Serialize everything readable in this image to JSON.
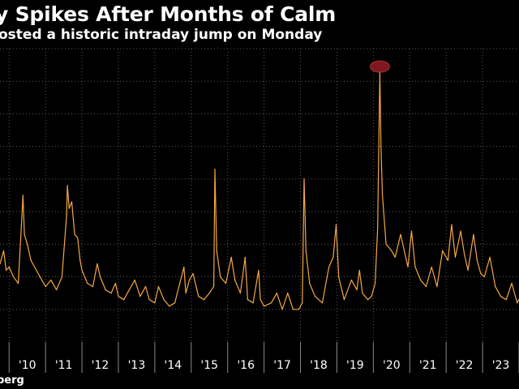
{
  "header": {
    "title": "y Spikes After Months of Calm",
    "subtitle": "osted a historic intraday jump on Monday"
  },
  "footer": {
    "source": "berg"
  },
  "colors": {
    "background": "#000000",
    "line": "#f5a742",
    "grid": "#5a5a5a",
    "highlight": "#8b1a26"
  },
  "chart_data": {
    "type": "line",
    "title": "y Spikes After Months of Calm",
    "subtitle": "osted a historic intraday jump on Monday",
    "x_tick_labels": [
      "'10",
      "'11",
      "'12",
      "'13",
      "'14",
      "'15",
      "'16",
      "'17",
      "'18",
      "'19",
      "'20",
      "'21",
      "'22",
      "'23"
    ],
    "x_range": [
      2009.75,
      2024.0
    ],
    "y_range": [
      0,
      90
    ],
    "grid": "on (vertical dotted at year boundaries, horizontal dotted)",
    "annotation": "red ellipse marking the 2020 peak",
    "series": [
      {
        "values": [
          [
            2009.75,
            24
          ],
          [
            2009.85,
            28
          ],
          [
            2009.92,
            22
          ],
          [
            2010.0,
            23
          ],
          [
            2010.12,
            20
          ],
          [
            2010.25,
            18
          ],
          [
            2010.35,
            38
          ],
          [
            2010.38,
            45
          ],
          [
            2010.42,
            33
          ],
          [
            2010.5,
            30
          ],
          [
            2010.6,
            25
          ],
          [
            2010.75,
            22
          ],
          [
            2010.9,
            19
          ],
          [
            2011.0,
            17
          ],
          [
            2011.15,
            19
          ],
          [
            2011.3,
            16
          ],
          [
            2011.45,
            20
          ],
          [
            2011.58,
            39
          ],
          [
            2011.6,
            48
          ],
          [
            2011.65,
            41
          ],
          [
            2011.72,
            43
          ],
          [
            2011.8,
            33
          ],
          [
            2011.88,
            32
          ],
          [
            2011.95,
            25
          ],
          [
            2012.0,
            22
          ],
          [
            2012.15,
            18
          ],
          [
            2012.3,
            17
          ],
          [
            2012.42,
            24
          ],
          [
            2012.5,
            20
          ],
          [
            2012.65,
            16
          ],
          [
            2012.8,
            15
          ],
          [
            2012.92,
            18
          ],
          [
            2013.0,
            14
          ],
          [
            2013.15,
            13
          ],
          [
            2013.3,
            16
          ],
          [
            2013.45,
            19
          ],
          [
            2013.6,
            14
          ],
          [
            2013.75,
            17
          ],
          [
            2013.85,
            13
          ],
          [
            2014.0,
            12
          ],
          [
            2014.1,
            17
          ],
          [
            2014.25,
            13
          ],
          [
            2014.4,
            11
          ],
          [
            2014.55,
            12
          ],
          [
            2014.8,
            23
          ],
          [
            2014.85,
            15
          ],
          [
            2014.95,
            19
          ],
          [
            2015.05,
            21
          ],
          [
            2015.2,
            14
          ],
          [
            2015.35,
            13
          ],
          [
            2015.5,
            15
          ],
          [
            2015.62,
            17
          ],
          [
            2015.65,
            53
          ],
          [
            2015.7,
            28
          ],
          [
            2015.8,
            20
          ],
          [
            2015.95,
            18
          ],
          [
            2016.1,
            26
          ],
          [
            2016.2,
            19
          ],
          [
            2016.35,
            15
          ],
          [
            2016.48,
            26
          ],
          [
            2016.55,
            13
          ],
          [
            2016.7,
            12
          ],
          [
            2016.85,
            22
          ],
          [
            2016.9,
            13
          ],
          [
            2017.0,
            11
          ],
          [
            2017.2,
            12
          ],
          [
            2017.35,
            15
          ],
          [
            2017.5,
            10
          ],
          [
            2017.65,
            15
          ],
          [
            2017.8,
            10
          ],
          [
            2017.95,
            10
          ],
          [
            2018.05,
            12
          ],
          [
            2018.1,
            50
          ],
          [
            2018.15,
            28
          ],
          [
            2018.25,
            18
          ],
          [
            2018.4,
            14
          ],
          [
            2018.6,
            12
          ],
          [
            2018.78,
            23
          ],
          [
            2018.9,
            26
          ],
          [
            2018.98,
            36
          ],
          [
            2019.05,
            20
          ],
          [
            2019.2,
            13
          ],
          [
            2019.4,
            19
          ],
          [
            2019.55,
            16
          ],
          [
            2019.62,
            22
          ],
          [
            2019.7,
            15
          ],
          [
            2019.85,
            13
          ],
          [
            2019.95,
            14
          ],
          [
            2020.05,
            18
          ],
          [
            2020.12,
            35
          ],
          [
            2020.18,
            83
          ],
          [
            2020.21,
            60
          ],
          [
            2020.25,
            45
          ],
          [
            2020.35,
            30
          ],
          [
            2020.5,
            28
          ],
          [
            2020.6,
            26
          ],
          [
            2020.75,
            33
          ],
          [
            2020.85,
            28
          ],
          [
            2020.95,
            23
          ],
          [
            2021.05,
            34
          ],
          [
            2021.15,
            23
          ],
          [
            2021.3,
            19
          ],
          [
            2021.45,
            17
          ],
          [
            2021.6,
            23
          ],
          [
            2021.75,
            17
          ],
          [
            2021.9,
            28
          ],
          [
            2022.05,
            25
          ],
          [
            2022.15,
            36
          ],
          [
            2022.25,
            26
          ],
          [
            2022.4,
            34
          ],
          [
            2022.5,
            27
          ],
          [
            2022.6,
            22
          ],
          [
            2022.75,
            33
          ],
          [
            2022.85,
            25
          ],
          [
            2022.95,
            21
          ],
          [
            2023.05,
            20
          ],
          [
            2023.2,
            26
          ],
          [
            2023.35,
            17
          ],
          [
            2023.5,
            14
          ],
          [
            2023.65,
            13
          ],
          [
            2023.8,
            18
          ],
          [
            2023.95,
            12
          ],
          [
            2024.0,
            13
          ]
        ]
      }
    ]
  }
}
